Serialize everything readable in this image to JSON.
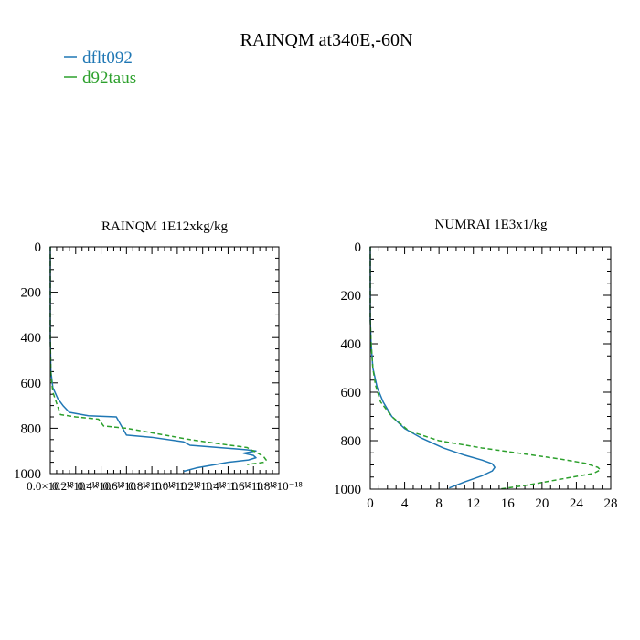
{
  "figure": {
    "title": "RAINQM at340E,-60N",
    "legend": [
      {
        "name": "dflt092",
        "color": "#1f77b4",
        "dash": "solid"
      },
      {
        "name": "d92taus",
        "color": "#2ca02c",
        "dash": "dashed"
      }
    ],
    "legend_placement": "top-left"
  },
  "chart_data": [
    {
      "type": "line",
      "title": "RAINQM  1E12xkg/kg",
      "xlim": [
        0,
        1.8e-18
      ],
      "ylim": [
        1000,
        0
      ],
      "xticks": [
        0,
        2e-19,
        4e-19,
        6e-19,
        8e-19,
        1e-18,
        1.2e-18,
        1.4e-18,
        1.6e-18,
        1.8e-18
      ],
      "xtick_labels": [
        "0.0×10⁻¹⁸",
        "0.2×10⁻¹⁸",
        "0.4×10⁻¹⁸",
        "0.6×10⁻¹⁸",
        "0.8×10⁻¹⁸",
        "1.0×10⁻¹⁸",
        "1.2×10⁻¹⁸",
        "1.4×10⁻¹⁸",
        "1.6×10⁻¹⁸",
        "1.8×10⁻¹⁸"
      ],
      "xtick_label_positions": [
        0,
        2e-19,
        4e-19,
        6e-19,
        8e-19,
        1e-18,
        1.2e-18,
        1.4e-18,
        1.6e-18,
        1.8e-18
      ],
      "yticks": [
        0,
        200,
        400,
        600,
        800,
        1000
      ],
      "grid": false,
      "series": [
        {
          "name": "dflt092",
          "color": "#1f77b4",
          "dash": "solid",
          "x": [
            0,
            0,
            5e-21,
            2e-20,
            6e-20,
            1e-19,
            1.5e-19,
            3e-19,
            5.2e-19,
            5.5e-19,
            6e-19,
            8e-19,
            1.05e-18,
            1.1e-18,
            1.55e-18,
            1.62e-18,
            1.52e-18,
            1.6e-18,
            1.62e-18,
            1.56e-18,
            1.4e-18,
            1.3e-18,
            1.15e-18,
            1.05e-18
          ],
          "y": [
            0,
            400,
            550,
            620,
            670,
            700,
            730,
            745,
            750,
            780,
            830,
            840,
            860,
            875,
            895,
            900,
            910,
            920,
            930,
            940,
            950,
            960,
            975,
            990
          ]
        },
        {
          "name": "d92taus",
          "color": "#2ca02c",
          "dash": "dashed",
          "x": [
            0,
            0,
            5e-21,
            2e-20,
            5e-20,
            8e-20,
            2e-19,
            3.8e-19,
            4.2e-19,
            6e-19,
            8e-19,
            1.1e-18,
            1.35e-18,
            1.55e-18,
            1.58e-18,
            1.62e-18,
            1.68e-18,
            1.7e-18,
            1.68e-18,
            1.62e-18,
            1.55e-18
          ],
          "y": [
            0,
            400,
            560,
            640,
            690,
            740,
            750,
            760,
            790,
            800,
            820,
            850,
            870,
            885,
            895,
            905,
            925,
            940,
            950,
            955,
            960
          ]
        }
      ]
    },
    {
      "type": "line",
      "title": "NUMRAI  1E3x1/kg",
      "xlim": [
        0,
        28
      ],
      "ylim": [
        1000,
        0
      ],
      "xticks": [
        0,
        4,
        8,
        12,
        16,
        20,
        24,
        28
      ],
      "xtick_labels": [
        "0",
        "4",
        "8",
        "12",
        "16",
        "20",
        "24",
        "28"
      ],
      "yticks": [
        0,
        200,
        400,
        600,
        800,
        1000
      ],
      "grid": false,
      "series": [
        {
          "name": "dflt092",
          "color": "#1f77b4",
          "dash": "solid",
          "x": [
            0,
            0,
            0.1,
            0.3,
            0.8,
            1.5,
            2.5,
            4,
            6,
            8.5,
            11,
            13,
            14.2,
            14.5,
            14.2,
            13,
            11,
            9.2
          ],
          "y": [
            0,
            300,
            400,
            500,
            580,
            640,
            700,
            750,
            790,
            830,
            860,
            880,
            895,
            910,
            925,
            945,
            970,
            995
          ]
        },
        {
          "name": "d92taus",
          "color": "#2ca02c",
          "dash": "dashed",
          "x": [
            0,
            0,
            0.1,
            0.3,
            0.6,
            1.2,
            2.5,
            4.5,
            8,
            13,
            18,
            22,
            25,
            26.5,
            26.8,
            26,
            22,
            18,
            15
          ],
          "y": [
            0,
            300,
            400,
            500,
            570,
            640,
            700,
            760,
            800,
            830,
            855,
            875,
            893,
            910,
            920,
            935,
            960,
            985,
            1000
          ]
        }
      ]
    }
  ]
}
